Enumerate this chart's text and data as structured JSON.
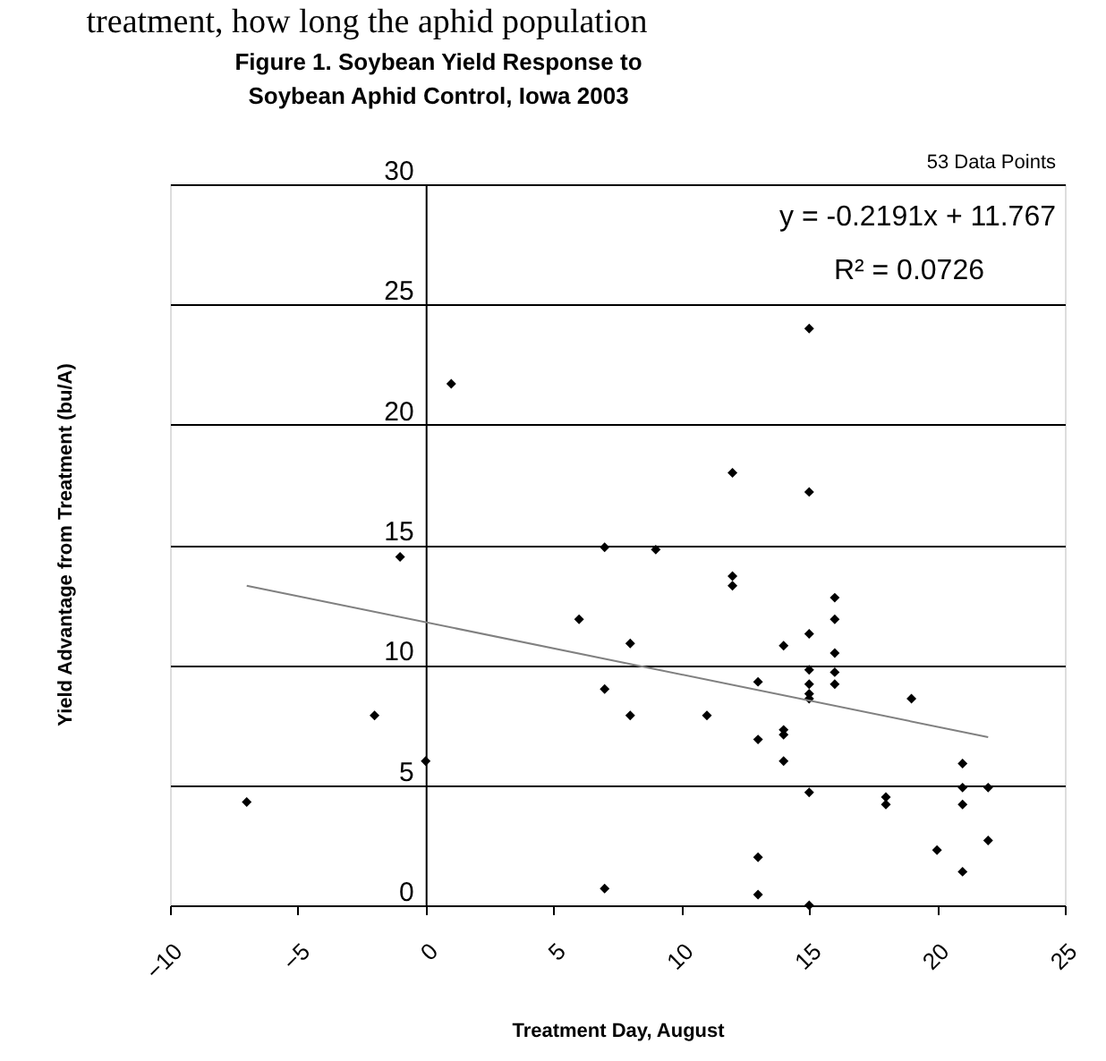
{
  "chart_data": {
    "type": "scatter",
    "title": "Figure 1.  Soybean Yield Response to\nSoybean Aphid Control, Iowa 2003",
    "xlabel": "Treatment Day, August",
    "ylabel": "Yield Advantage from Treatment (bu/A)",
    "annotations": [
      "treatment, how long the aphid population",
      "53 Data Points",
      "y = -0.2191x + 11.767",
      "R² = 0.0726"
    ],
    "series": [
      {
        "color": "#000000",
        "marker": "diamond",
        "x": [
          -7,
          1,
          -1,
          6,
          -2,
          0,
          7,
          9,
          12,
          12,
          12,
          8,
          7,
          8,
          11,
          13,
          13,
          14,
          14,
          14,
          14,
          15,
          15,
          15,
          15,
          15,
          16,
          16,
          16,
          16,
          16,
          19,
          21,
          21,
          22,
          21,
          18,
          18,
          15,
          20,
          22,
          21,
          13,
          13,
          7,
          15,
          15,
          15
        ],
        "values": [
          4.3,
          21.7,
          14.5,
          11.9,
          7.9,
          6.0,
          14.9,
          14.8,
          13.7,
          13.3,
          18.0,
          10.9,
          9.0,
          7.9,
          7.9,
          9.3,
          6.9,
          10.8,
          7.3,
          7.1,
          6.0,
          11.3,
          9.8,
          9.2,
          8.8,
          8.6,
          12.8,
          11.9,
          10.5,
          9.7,
          9.2,
          8.6,
          5.9,
          4.9,
          4.9,
          4.2,
          4.5,
          4.2,
          4.7,
          2.3,
          2.7,
          1.4,
          2.0,
          0.45,
          0.7,
          0.0,
          24.0,
          17.2
        ]
      },
      {
        "type": "line",
        "color": "#808080",
        "line_style": "solid",
        "x": [
          -7,
          22
        ],
        "values": [
          13.3,
          7.0
        ]
      }
    ],
    "xlim": [
      -10,
      25
    ],
    "xticks": [
      -10,
      -5,
      0,
      5,
      10,
      15,
      20,
      25
    ],
    "ylim": [
      0,
      30
    ],
    "yticks": [
      0,
      5,
      10,
      15,
      20,
      25,
      30
    ],
    "grid": "y"
  }
}
